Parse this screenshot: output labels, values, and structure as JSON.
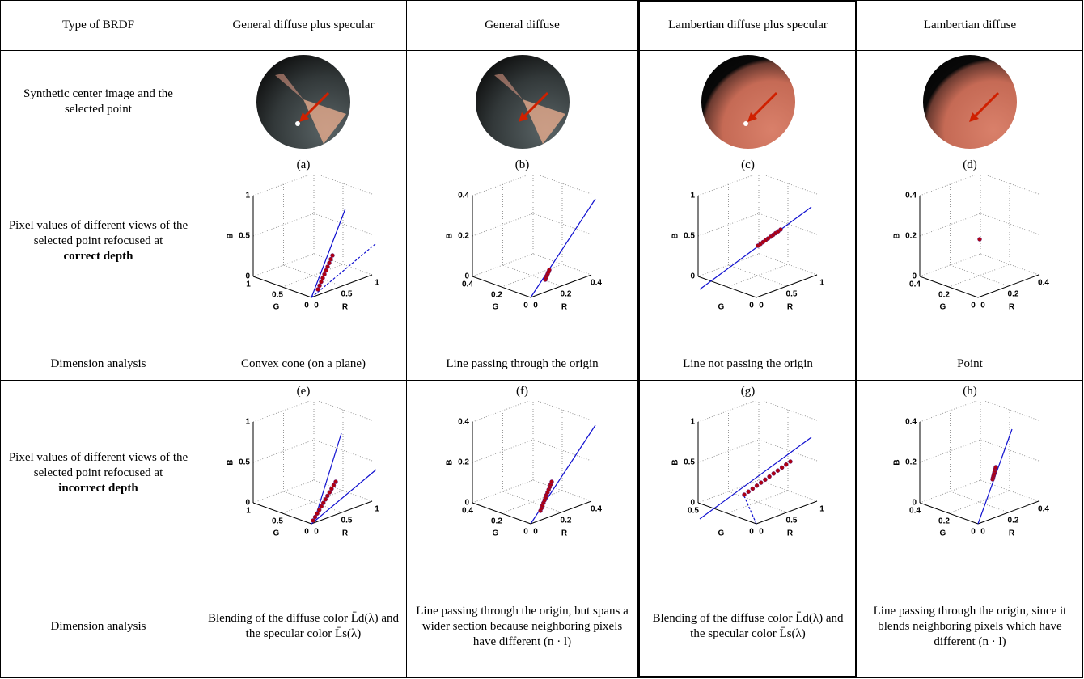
{
  "header": [
    "Type of BRDF",
    "General diffuse plus specular",
    "General diffuse",
    "Lambertian diffuse plus specular",
    "Lambertian diffuse"
  ],
  "rows": [
    {
      "label": "Synthetic center image and the selected point"
    },
    {
      "label": "Pixel values of different views of the selected point refocused at",
      "emphasis": "correct depth",
      "analysis_label": "Dimension analysis",
      "panels": [
        {
          "tag": "(a)",
          "b_axis": "B",
          "g_axis": "G",
          "r_axis": "R",
          "b_ticks": [
            1,
            0.5,
            0
          ],
          "g_ticks": [
            1,
            0.5,
            0
          ],
          "r_ticks": [
            0,
            0.5,
            1
          ],
          "analysis": "Convex cone (on a plane)"
        },
        {
          "tag": "(b)",
          "b_axis": "B",
          "g_axis": "G",
          "r_axis": "R",
          "b_ticks": [
            0.4,
            0.2,
            0
          ],
          "g_ticks": [
            0.4,
            0.2,
            0
          ],
          "r_ticks": [
            0,
            0.2,
            0.4
          ],
          "analysis": "Line passing through the origin"
        },
        {
          "tag": "(c)",
          "b_axis": "B",
          "g_axis": "G",
          "r_axis": "R",
          "b_ticks": [
            1,
            0.5,
            0
          ],
          "g_ticks": [
            0
          ],
          "r_ticks": [
            0,
            0.5,
            1
          ],
          "analysis": "Line not passing the origin"
        },
        {
          "tag": "(d)",
          "b_axis": "B",
          "g_axis": "G",
          "r_axis": "R",
          "b_ticks": [
            0.4,
            0.2,
            0
          ],
          "g_ticks": [
            0.4,
            0.2,
            0
          ],
          "r_ticks": [
            0,
            0.2,
            0.4
          ],
          "analysis": "Point"
        }
      ]
    },
    {
      "label": "Pixel values of different views of the selected point refocused at",
      "emphasis": "incorrect depth",
      "analysis_label": "Dimension analysis",
      "panels": [
        {
          "tag": "(e)",
          "b_axis": "B",
          "g_axis": "G",
          "r_axis": "R",
          "b_ticks": [
            1,
            0.5,
            0
          ],
          "g_ticks": [
            1,
            0.5,
            0
          ],
          "r_ticks": [
            0,
            0.5,
            1
          ],
          "analysis": "Blending of the diffuse color L̄d(λ) and the specular color L̄s(λ)"
        },
        {
          "tag": "(f)",
          "b_axis": "B",
          "g_axis": "G",
          "r_axis": "R",
          "b_ticks": [
            0.4,
            0.2,
            0
          ],
          "g_ticks": [
            0.4,
            0.2,
            0
          ],
          "r_ticks": [
            0,
            0.2,
            0.4
          ],
          "analysis": "Line passing through the origin, but spans a wider section because neighboring pixels have different (n · l)"
        },
        {
          "tag": "(g)",
          "b_axis": "B",
          "g_axis": "G",
          "r_axis": "R",
          "b_ticks": [
            1,
            0.5,
            0
          ],
          "g_ticks": [
            0.5,
            0
          ],
          "r_ticks": [
            0,
            0.5,
            1
          ],
          "analysis": "Blending of the diffuse color L̄d(λ) and the specular color L̄s(λ)"
        },
        {
          "tag": "(h)",
          "b_axis": "B",
          "g_axis": "G",
          "r_axis": "R",
          "b_ticks": [
            0.4,
            0.2,
            0
          ],
          "g_ticks": [
            0.4,
            0.2,
            0
          ],
          "r_ticks": [
            0,
            0.2,
            0.4
          ],
          "analysis": "Line passing through the origin, since it blends neighboring pixels which have different (n · l)"
        }
      ]
    }
  ]
}
